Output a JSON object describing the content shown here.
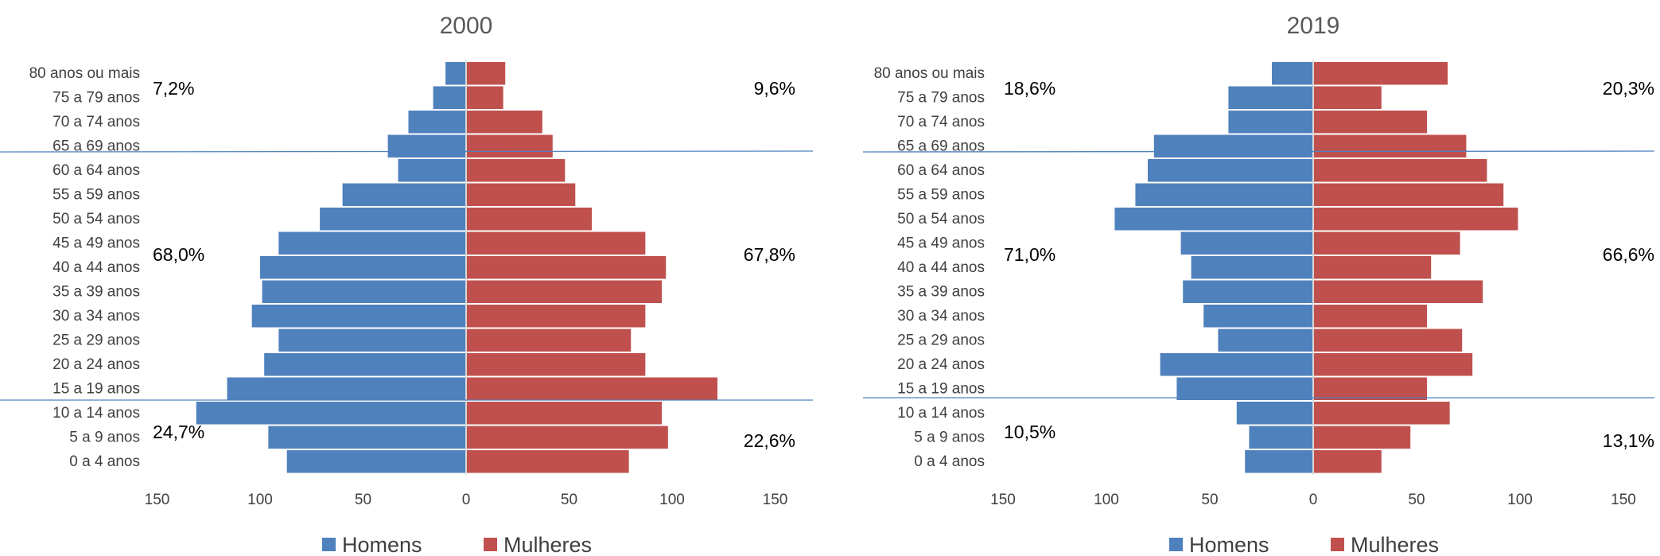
{
  "colors": {
    "homens": "#4f81bd",
    "mulheres": "#c0504d",
    "divider": "#4f81bd",
    "center": "#d9d9d9"
  },
  "legend": {
    "homens": "Homens",
    "mulheres": "Mulheres"
  },
  "chart_data": [
    {
      "type": "bar",
      "orientation": "horizontal-population-pyramid",
      "title": "2000",
      "categories": [
        "80 anos ou mais",
        "75 a 79 anos",
        "70 a 74 anos",
        "65 a 69 anos",
        "60 a 64 anos",
        "55 a 59 anos",
        "50 a 54 anos",
        "45 a 49 anos",
        "40 a 44 anos",
        "35 a 39 anos",
        "30 a 34 anos",
        "25 a 29 anos",
        "20 a 24 anos",
        "15 a 19 anos",
        "10 a 14 anos",
        "5 a 9 anos",
        "0 a 4 anos"
      ],
      "series": [
        {
          "name": "Homens",
          "values": [
            10,
            16,
            28,
            38,
            33,
            60,
            71,
            91,
            100,
            99,
            104,
            91,
            98,
            116,
            131,
            96,
            87
          ]
        },
        {
          "name": "Mulheres",
          "values": [
            19,
            18,
            37,
            42,
            48,
            53,
            61,
            87,
            97,
            95,
            87,
            80,
            87,
            122,
            95,
            98,
            79
          ]
        }
      ],
      "xlim": [
        -150,
        150
      ],
      "ticks": [
        "150",
        "100",
        "50",
        "0",
        "50",
        "100",
        "150"
      ],
      "annotations": {
        "top_left": "7,2%",
        "top_right": "9,6%",
        "mid_left": "68,0%",
        "mid_right": "67,8%",
        "bottom_left": "24,7%",
        "bottom_right": "22,6%"
      },
      "legend": "bottom"
    },
    {
      "type": "bar",
      "orientation": "horizontal-population-pyramid",
      "title": "2019",
      "categories": [
        "80 anos ou mais",
        "75 a 79 anos",
        "70 a 74 anos",
        "65 a 69 anos",
        "60 a 64 anos",
        "55 a 59 anos",
        "50 a 54 anos",
        "45 a 49 anos",
        "40 a 44 anos",
        "35 a 39 anos",
        "30 a 34 anos",
        "25 a 29 anos",
        "20 a 24 anos",
        "15 a 19 anos",
        "10 a 14 anos",
        "5 a 9 anos",
        "0 a 4 anos"
      ],
      "series": [
        {
          "name": "Homens",
          "values": [
            20,
            41,
            41,
            77,
            80,
            86,
            96,
            64,
            59,
            63,
            53,
            46,
            74,
            66,
            37,
            31,
            33
          ]
        },
        {
          "name": "Mulheres",
          "values": [
            65,
            33,
            55,
            74,
            84,
            92,
            99,
            71,
            57,
            82,
            55,
            72,
            77,
            55,
            66,
            47,
            33
          ]
        }
      ],
      "xlim": [
        -150,
        150
      ],
      "ticks": [
        "150",
        "100",
        "50",
        "0",
        "50",
        "100",
        "150"
      ],
      "annotations": {
        "top_left": "18,6%",
        "top_right": "20,3%",
        "mid_left": "71,0%",
        "mid_right": "66,6%",
        "bottom_left": "10,5%",
        "bottom_right": "13,1%"
      },
      "legend": "bottom"
    }
  ]
}
